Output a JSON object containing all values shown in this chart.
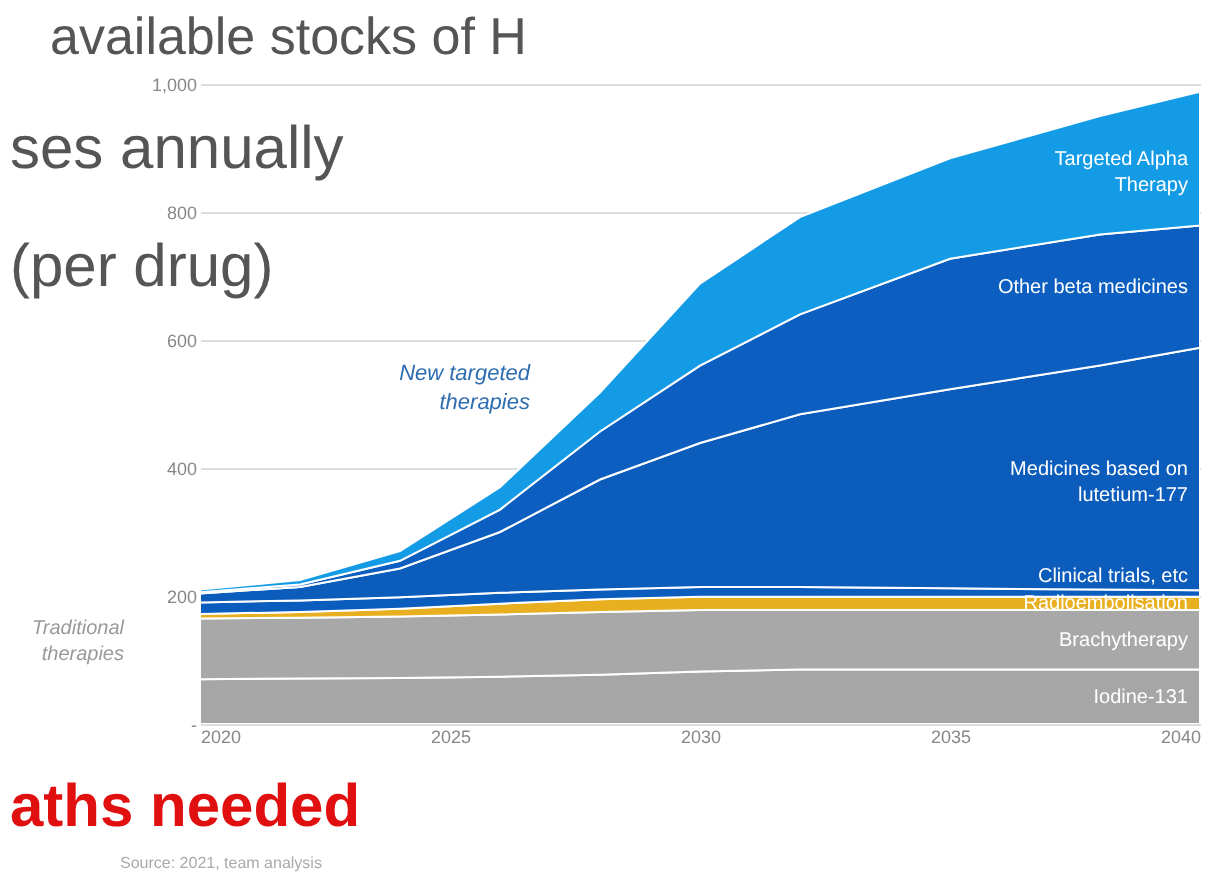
{
  "chart_data": {
    "type": "area",
    "stacked": true,
    "title": "available stocks of H",
    "x": [
      2020,
      2022,
      2024,
      2026,
      2028,
      2030,
      2032,
      2035,
      2038,
      2040
    ],
    "xlim": [
      2020,
      2040
    ],
    "xticks": [
      2020,
      2025,
      2030,
      2035,
      2040
    ],
    "ylim": [
      0,
      1000
    ],
    "yticks": [
      {
        "value": 0,
        "label": "-"
      },
      200,
      400,
      600,
      800,
      {
        "value": 1000,
        "label": "1,000"
      }
    ],
    "grid": "y",
    "series": [
      {
        "name": "Iodine-131",
        "color": "#a6a6a6",
        "values": [
          70,
          71,
          72,
          74,
          77,
          82,
          85,
          85,
          85,
          85
        ]
      },
      {
        "name": "Brachytherapy",
        "color": "#a8a8a8",
        "values": [
          95,
          95,
          96,
          97,
          98,
          96,
          93,
          93,
          93,
          93
        ]
      },
      {
        "name": "Radioembolisation",
        "color": "#e8b021",
        "values": [
          7,
          9,
          12,
          17,
          20,
          21,
          21,
          21,
          21,
          21
        ]
      },
      {
        "name": "Clinical trials, etc",
        "color": "#0a5dbd",
        "values": [
          18,
          18,
          18,
          17,
          15,
          15,
          15,
          13,
          11,
          10
        ]
      },
      {
        "name": "Medicines based on lutetium-177",
        "color": "#0b5cbb",
        "values": [
          14,
          21,
          45,
          95,
          172,
          225,
          270,
          311,
          350,
          379
        ]
      },
      {
        "name": "Other beta medicines",
        "color": "#0c5fc0",
        "values": [
          2,
          4,
          12,
          35,
          75,
          121,
          156,
          204,
          205,
          191
        ]
      },
      {
        "name": "Targeted Alpha Therapy",
        "color": "#139be6",
        "values": [
          4,
          7,
          15,
          35,
          61,
          128,
          152,
          157,
          185,
          209
        ]
      }
    ],
    "annotations": [
      "New targeted therapies",
      "Traditional therapies",
      "ses annually",
      "(per drug)",
      "aths needed",
      "Source: 2021, team analysis"
    ]
  }
}
